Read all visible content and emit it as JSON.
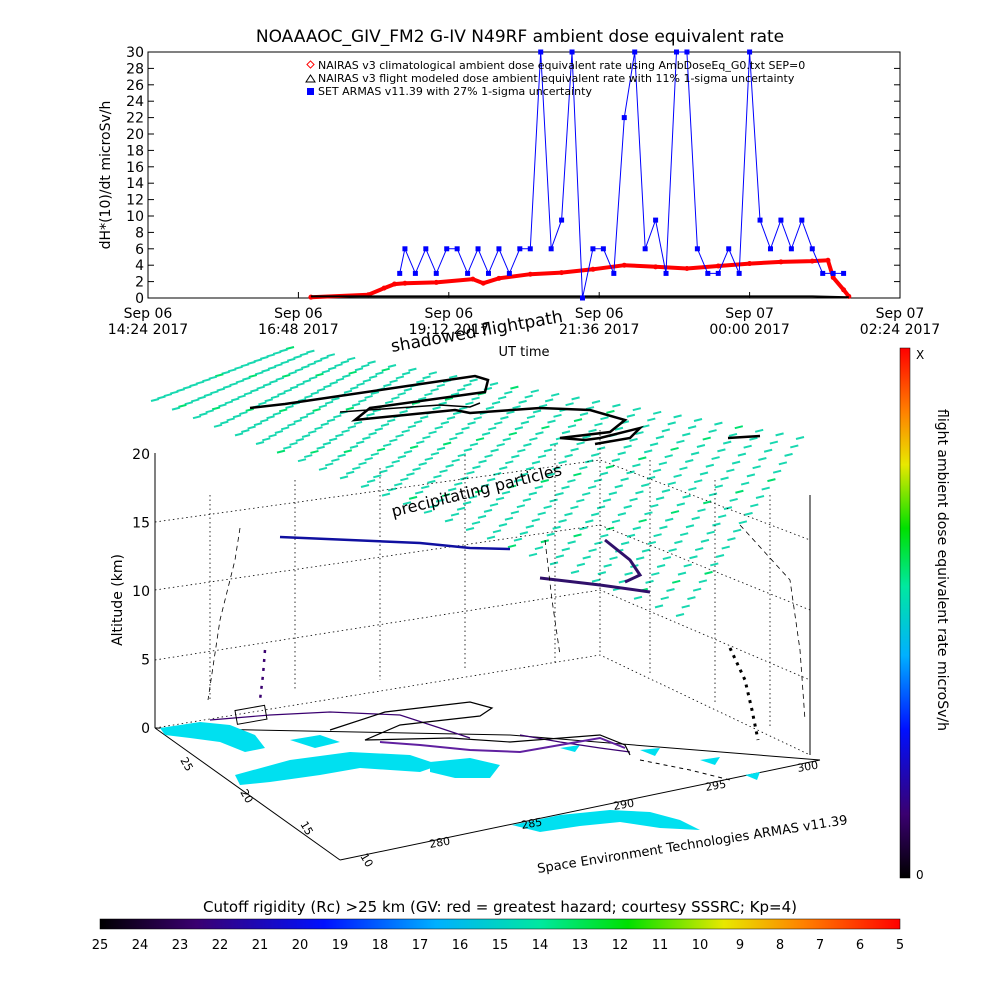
{
  "chart_data": [
    {
      "type": "line",
      "title": "NOAAAOC_GIV_FM2 G-IV    N49RF  ambient dose equivalent rate",
      "xlabel": "UT time",
      "ylabel": "dH*(10)/dt microSv/h",
      "xlim": [
        "2017-09-06 14:24",
        "2017-09-07 02:24"
      ],
      "ylim": [
        0,
        30
      ],
      "y_ticks": [
        "0",
        "2",
        "4",
        "6",
        "8",
        "10",
        "12",
        "14",
        "16",
        "18",
        "20",
        "22",
        "24",
        "26",
        "28",
        "30"
      ],
      "x_ticks": [
        {
          "day": "Sep 06",
          "time": "14:24 2017"
        },
        {
          "day": "Sep 06",
          "time": "16:48 2017"
        },
        {
          "day": "Sep 06",
          "time": "19:12 2017"
        },
        {
          "day": "Sep 06",
          "time": "21:36 2017"
        },
        {
          "day": "Sep 07",
          "time": "00:00 2017"
        },
        {
          "day": "Sep 07",
          "time": "02:24 2017"
        }
      ],
      "legend": [
        {
          "label": "NAIRAS v3 climatological ambient dose equivalent rate using AmbDoseEq_G0.txt SEP=0",
          "color": "#ff0000",
          "marker": "diamond"
        },
        {
          "label": "NAIRAS v3 flight modeled dose ambient equivalent rate with 11% 1-sigma uncertainty",
          "color": "#000000",
          "marker": "triangle"
        },
        {
          "label": "SET ARMAS v11.39 with 27% 1-sigma uncertainty",
          "color": "#0000ff",
          "marker": "square"
        }
      ],
      "legend_position": "top-right",
      "series": [
        {
          "name": "NAIRAS v3 climatological ambient dose equivalent rate using AmbDoseEq_G0.txt SEP=0",
          "color": "#ff0000",
          "x": [
            "2017-09-06 17:00",
            "2017-09-06 17:55",
            "2017-09-06 18:10",
            "2017-09-06 18:20",
            "2017-09-06 18:30",
            "2017-09-06 19:00",
            "2017-09-06 19:35",
            "2017-09-06 19:45",
            "2017-09-06 20:00",
            "2017-09-06 20:30",
            "2017-09-06 21:00",
            "2017-09-06 21:30",
            "2017-09-06 22:00",
            "2017-09-06 22:30",
            "2017-09-06 23:00",
            "2017-09-06 23:30",
            "2017-09-07 00:00",
            "2017-09-07 00:30",
            "2017-09-07 01:00",
            "2017-09-07 01:15",
            "2017-09-07 01:20",
            "2017-09-07 01:30",
            "2017-09-07 01:35"
          ],
          "values": [
            0.1,
            0.4,
            1.2,
            1.7,
            1.8,
            1.9,
            2.3,
            1.8,
            2.4,
            2.9,
            3.1,
            3.5,
            4.0,
            3.8,
            3.6,
            3.9,
            4.2,
            4.4,
            4.5,
            4.6,
            2.5,
            1.0,
            0.2
          ]
        },
        {
          "name": "NAIRAS v3 flight modeled dose ambient equivalent rate with 11% 1-sigma uncertainty",
          "color": "#000000",
          "x": [
            "2017-09-06 17:00",
            "2017-09-06 19:00",
            "2017-09-06 21:00",
            "2017-09-06 23:00",
            "2017-09-07 01:00",
            "2017-09-07 01:35"
          ],
          "values": [
            0.2,
            0.2,
            0.2,
            0.2,
            0.2,
            0.1
          ]
        },
        {
          "name": "SET ARMAS v11.39 with 27% 1-sigma uncertainty",
          "color": "#0000ff",
          "x": [
            "2017-09-06 18:25",
            "2017-09-06 18:30",
            "2017-09-06 18:40",
            "2017-09-06 18:50",
            "2017-09-06 19:00",
            "2017-09-06 19:10",
            "2017-09-06 19:20",
            "2017-09-06 19:30",
            "2017-09-06 19:40",
            "2017-09-06 19:50",
            "2017-09-06 20:00",
            "2017-09-06 20:10",
            "2017-09-06 20:20",
            "2017-09-06 20:30",
            "2017-09-06 20:40",
            "2017-09-06 20:50",
            "2017-09-06 21:00",
            "2017-09-06 21:10",
            "2017-09-06 21:20",
            "2017-09-06 21:30",
            "2017-09-06 21:40",
            "2017-09-06 21:50",
            "2017-09-06 22:00",
            "2017-09-06 22:10",
            "2017-09-06 22:20",
            "2017-09-06 22:30",
            "2017-09-06 22:40",
            "2017-09-06 22:50",
            "2017-09-06 23:00",
            "2017-09-06 23:10",
            "2017-09-06 23:20",
            "2017-09-06 23:30",
            "2017-09-06 23:40",
            "2017-09-06 23:50",
            "2017-09-07 00:00",
            "2017-09-07 00:10",
            "2017-09-07 00:20",
            "2017-09-07 00:30",
            "2017-09-07 00:40",
            "2017-09-07 00:50",
            "2017-09-07 01:00",
            "2017-09-07 01:10",
            "2017-09-07 01:20",
            "2017-09-07 01:30"
          ],
          "values": [
            3,
            6,
            3,
            6,
            3,
            6,
            6,
            3,
            6,
            3,
            6,
            3,
            6,
            6,
            30,
            6,
            9.5,
            30,
            0,
            6,
            6,
            3,
            22,
            30,
            6,
            9.5,
            3,
            30,
            30,
            6,
            3,
            3,
            6,
            3,
            30,
            9.5,
            6,
            9.5,
            6,
            9.5,
            6,
            3,
            3,
            3
          ]
        }
      ]
    },
    {
      "type": "scatter",
      "title": "",
      "subtitle": "shadowed flightpath",
      "annotation": "precipitating particles",
      "footer": "Space Environment Technologies ARMAS v11.39",
      "zlabel": "Altitude (km)",
      "z_ticks": [
        "0",
        "5",
        "10",
        "15",
        "20"
      ],
      "lat_ticks": [
        "25",
        "20",
        "15",
        "10"
      ],
      "lon_ticks": [
        "280",
        "285",
        "290",
        "295",
        "300"
      ],
      "colorbar_label": "flight ambient dose equivalent rate microSv/h",
      "colorbar_top": "X",
      "colorbar_bottom": "0"
    },
    {
      "type": "heatmap",
      "title": "Cutoff rigidity (Rc) >25 km (GV: red = greatest hazard; courtesy SSSRC; Kp=4)",
      "ticks": [
        "25",
        "24",
        "23",
        "22",
        "21",
        "20",
        "19",
        "18",
        "17",
        "16",
        "15",
        "14",
        "13",
        "12",
        "11",
        "10",
        "9",
        "8",
        "7",
        "6",
        "5"
      ]
    }
  ]
}
